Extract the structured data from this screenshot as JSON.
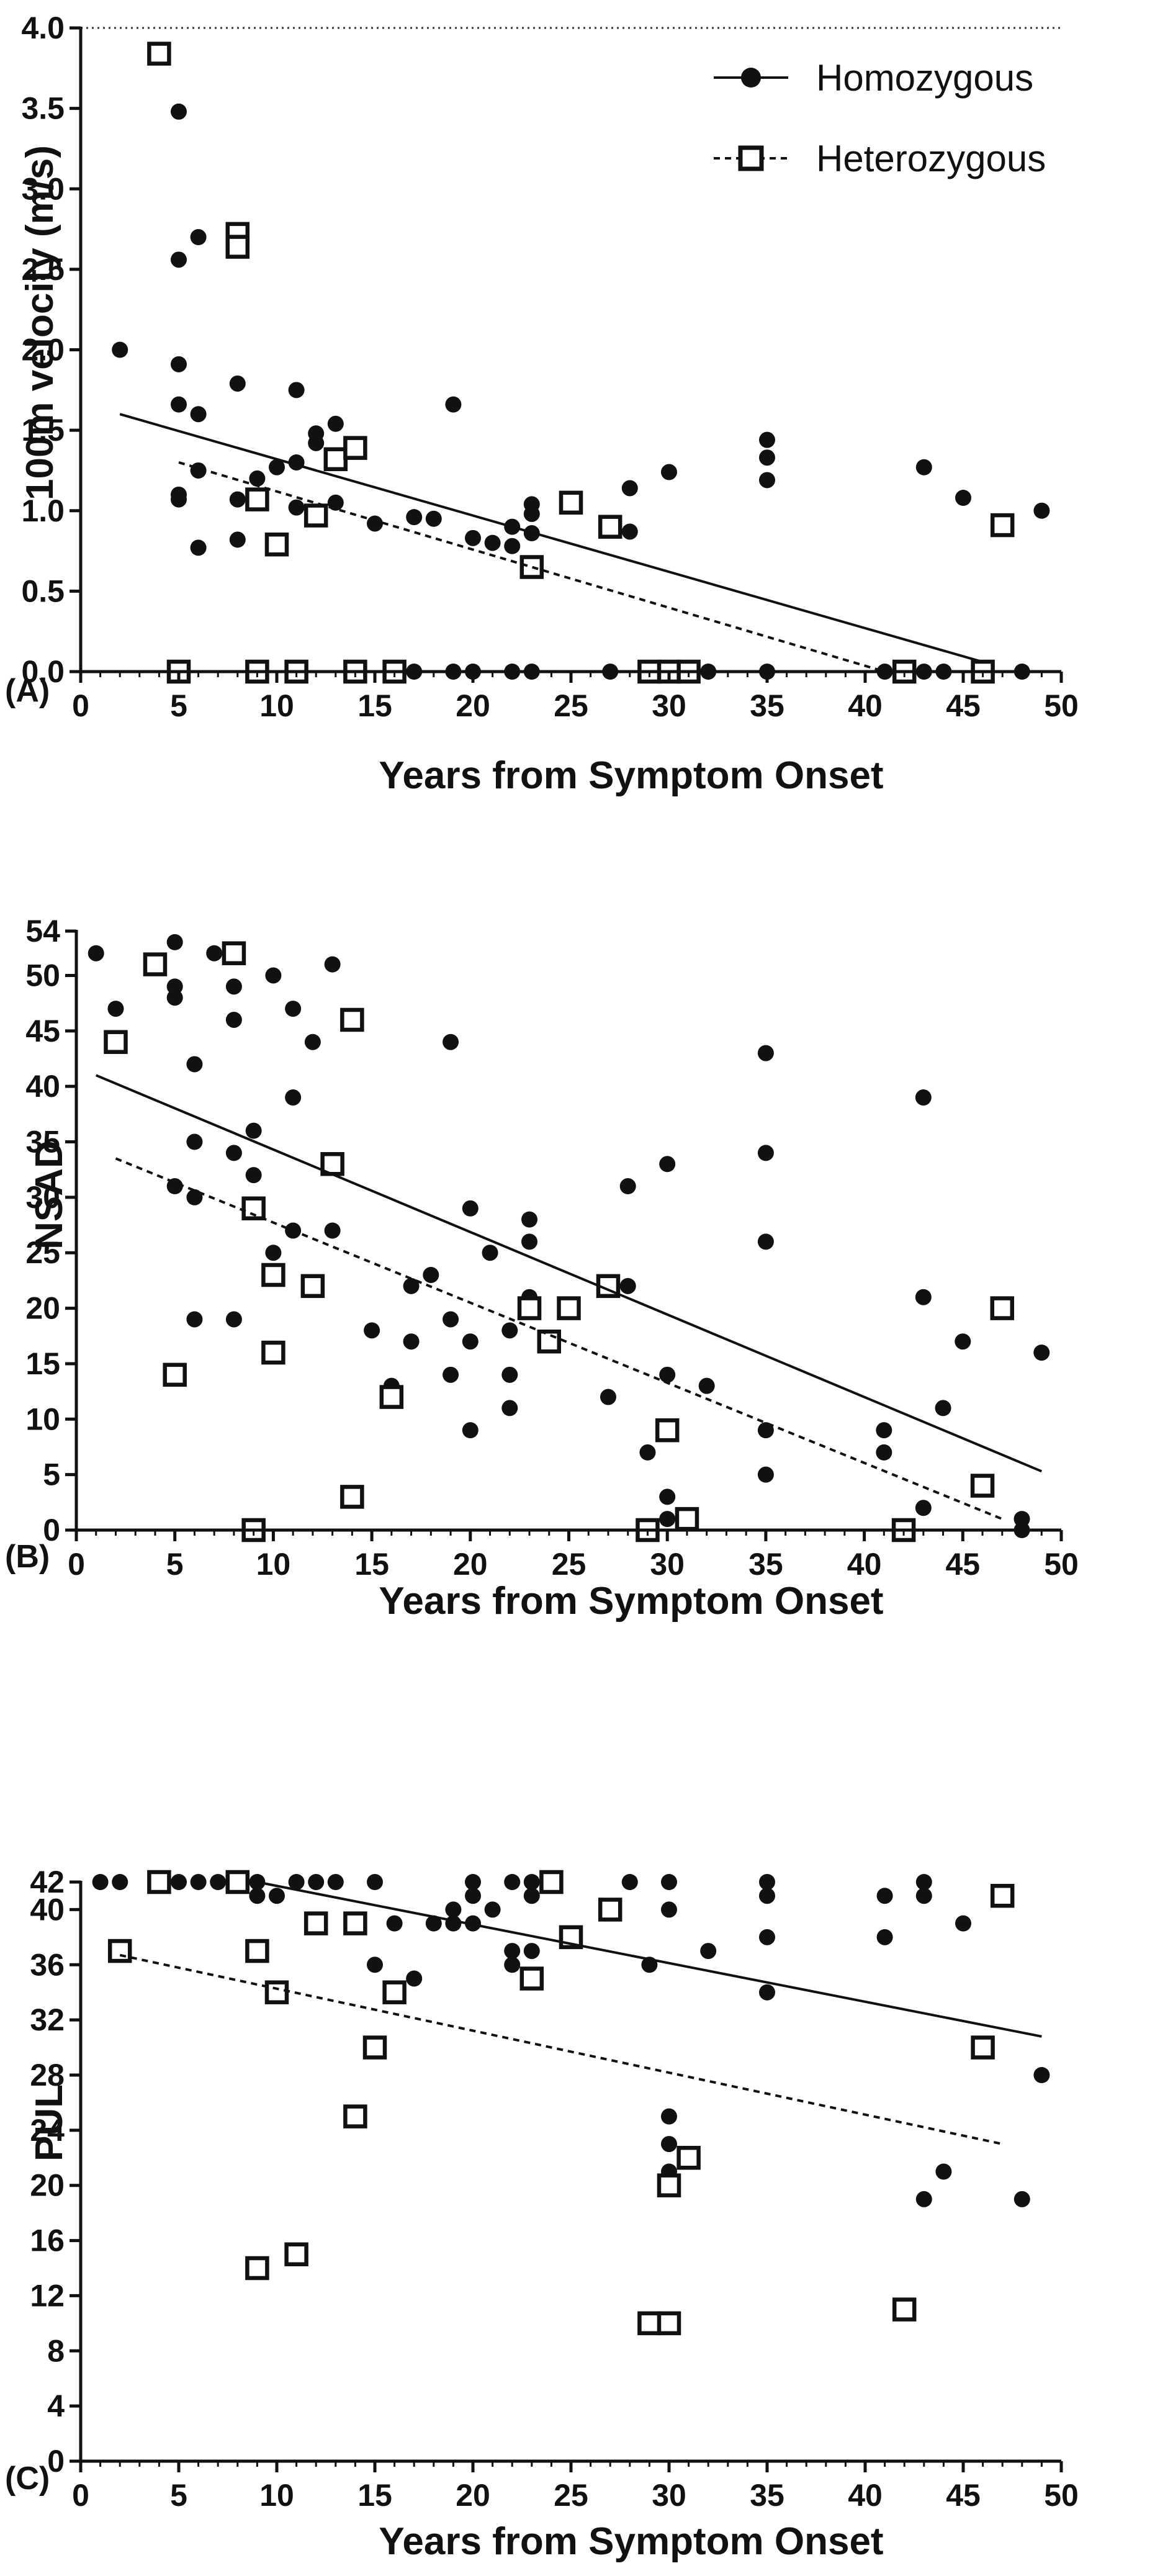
{
  "figure": {
    "legend": {
      "placement": "top-right",
      "entries": [
        "Homozygous",
        "Heterozygous"
      ]
    },
    "series_styles": {
      "Homozygous": {
        "marker": "filled-circle",
        "line": "solid"
      },
      "Heterozygous": {
        "marker": "open-square",
        "line": "dashed"
      }
    }
  },
  "chart_data": [
    {
      "panel_label": "(A)",
      "type": "scatter",
      "xlabel": "Years from Symptom Onset",
      "ylabel": "100m velocity (m/s)",
      "xlim": [
        0,
        50
      ],
      "ylim": [
        0,
        4.0
      ],
      "x_ticks": [
        "0",
        "5",
        "10",
        "15",
        "20",
        "25",
        "30",
        "35",
        "40",
        "45",
        "50"
      ],
      "y_ticks": [
        "0.0",
        "0.5",
        "1.0",
        "1.5",
        "2.0",
        "2.5",
        "3.0",
        "3.5",
        "4.0"
      ],
      "reference_line": {
        "y": 4.0,
        "style": "dotted"
      },
      "legend": [
        "Homozygous",
        "Heterozygous"
      ],
      "series": [
        {
          "name": "Homozygous",
          "points": [
            [
              2,
              2.0
            ],
            [
              5,
              3.48
            ],
            [
              5,
              2.56
            ],
            [
              5,
              1.91
            ],
            [
              5,
              1.66
            ],
            [
              5,
              1.1
            ],
            [
              5,
              1.07
            ],
            [
              6,
              2.7
            ],
            [
              6,
              1.6
            ],
            [
              6,
              1.25
            ],
            [
              6,
              0.77
            ],
            [
              8,
              1.79
            ],
            [
              8,
              1.07
            ],
            [
              8,
              0.82
            ],
            [
              9,
              1.2
            ],
            [
              10,
              1.27
            ],
            [
              11,
              1.75
            ],
            [
              11,
              1.3
            ],
            [
              11,
              1.02
            ],
            [
              12,
              1.48
            ],
            [
              12,
              1.42
            ],
            [
              13,
              1.54
            ],
            [
              13,
              1.05
            ],
            [
              15,
              0.92
            ],
            [
              17,
              0.96
            ],
            [
              18,
              0.95
            ],
            [
              19,
              1.66
            ],
            [
              20,
              0.83
            ],
            [
              21,
              0.8
            ],
            [
              22,
              0.9
            ],
            [
              22,
              0.78
            ],
            [
              23,
              1.04
            ],
            [
              23,
              0.98
            ],
            [
              23,
              0.86
            ],
            [
              28,
              1.14
            ],
            [
              28,
              0.87
            ],
            [
              30,
              1.24
            ],
            [
              35,
              1.44
            ],
            [
              35,
              1.33
            ],
            [
              35,
              1.19
            ],
            [
              43,
              1.27
            ],
            [
              45,
              1.08
            ],
            [
              49,
              1.0
            ],
            [
              16,
              0
            ],
            [
              17,
              0
            ],
            [
              19,
              0
            ],
            [
              20,
              0
            ],
            [
              22,
              0
            ],
            [
              23,
              0
            ],
            [
              27,
              0
            ],
            [
              29,
              0
            ],
            [
              30,
              0
            ],
            [
              32,
              0
            ],
            [
              35,
              0
            ],
            [
              41,
              0
            ],
            [
              43,
              0
            ],
            [
              44,
              0
            ],
            [
              48,
              0
            ]
          ]
        },
        {
          "name": "Heterozygous",
          "points": [
            [
              4,
              3.84
            ],
            [
              8,
              2.72
            ],
            [
              8,
              2.64
            ],
            [
              9,
              1.07
            ],
            [
              10,
              0.79
            ],
            [
              12,
              0.97
            ],
            [
              13,
              1.32
            ],
            [
              14,
              1.39
            ],
            [
              23,
              0.65
            ],
            [
              25,
              1.05
            ],
            [
              27,
              0.9
            ],
            [
              47,
              0.91
            ],
            [
              5,
              0
            ],
            [
              9,
              0
            ],
            [
              11,
              0
            ],
            [
              14,
              0
            ],
            [
              16,
              0
            ],
            [
              29,
              0
            ],
            [
              30,
              0
            ],
            [
              31,
              0
            ],
            [
              42,
              0
            ],
            [
              46,
              0
            ]
          ]
        }
      ],
      "trendlines": [
        {
          "name": "Homozygous",
          "style": "solid",
          "x": [
            2,
            46
          ],
          "y": [
            1.6,
            0.06
          ]
        },
        {
          "name": "Heterozygous",
          "style": "dashed",
          "x": [
            5,
            41
          ],
          "y": [
            1.3,
            0.0
          ]
        }
      ]
    },
    {
      "panel_label": "(B)",
      "type": "scatter",
      "xlabel": "Years from Symptom Onset",
      "ylabel": "NSAD",
      "xlim": [
        0,
        50
      ],
      "ylim": [
        0,
        54
      ],
      "x_ticks": [
        "0",
        "5",
        "10",
        "15",
        "20",
        "25",
        "30",
        "35",
        "40",
        "45",
        "50"
      ],
      "y_ticks": [
        "0",
        "5",
        "10",
        "15",
        "20",
        "25",
        "30",
        "35",
        "40",
        "45",
        "50",
        "54"
      ],
      "legend": [
        "Homozygous",
        "Heterozygous"
      ],
      "series": [
        {
          "name": "Homozygous",
          "points": [
            [
              1,
              52
            ],
            [
              2,
              47
            ],
            [
              5,
              53
            ],
            [
              5,
              49
            ],
            [
              5,
              48
            ],
            [
              5,
              31
            ],
            [
              6,
              42
            ],
            [
              6,
              35
            ],
            [
              6,
              30
            ],
            [
              6,
              19
            ],
            [
              7,
              52
            ],
            [
              8,
              49
            ],
            [
              8,
              46
            ],
            [
              8,
              34
            ],
            [
              8,
              19
            ],
            [
              9,
              36
            ],
            [
              9,
              32
            ],
            [
              10,
              50
            ],
            [
              10,
              25
            ],
            [
              11,
              47
            ],
            [
              11,
              39
            ],
            [
              11,
              27
            ],
            [
              12,
              44
            ],
            [
              13,
              51
            ],
            [
              13,
              27
            ],
            [
              15,
              18
            ],
            [
              16,
              13
            ],
            [
              17,
              22
            ],
            [
              17,
              17
            ],
            [
              18,
              23
            ],
            [
              19,
              44
            ],
            [
              19,
              19
            ],
            [
              19,
              14
            ],
            [
              20,
              29
            ],
            [
              20,
              17
            ],
            [
              20,
              9
            ],
            [
              21,
              25
            ],
            [
              22,
              18
            ],
            [
              22,
              14
            ],
            [
              22,
              11
            ],
            [
              23,
              28
            ],
            [
              23,
              26
            ],
            [
              23,
              21
            ],
            [
              23,
              20
            ],
            [
              27,
              12
            ],
            [
              28,
              31
            ],
            [
              28,
              22
            ],
            [
              29,
              7
            ],
            [
              30,
              33
            ],
            [
              30,
              14
            ],
            [
              30,
              3
            ],
            [
              30,
              1
            ],
            [
              32,
              13
            ],
            [
              35,
              43
            ],
            [
              35,
              34
            ],
            [
              35,
              26
            ],
            [
              35,
              9
            ],
            [
              35,
              5
            ],
            [
              41,
              9
            ],
            [
              41,
              7
            ],
            [
              43,
              39
            ],
            [
              43,
              21
            ],
            [
              43,
              2
            ],
            [
              44,
              11
            ],
            [
              45,
              17
            ],
            [
              48,
              1
            ],
            [
              48,
              0
            ],
            [
              49,
              16
            ]
          ]
        },
        {
          "name": "Heterozygous",
          "points": [
            [
              2,
              44
            ],
            [
              4,
              51
            ],
            [
              5,
              14
            ],
            [
              8,
              52
            ],
            [
              9,
              29
            ],
            [
              9,
              0
            ],
            [
              10,
              23
            ],
            [
              10,
              16
            ],
            [
              12,
              22
            ],
            [
              13,
              33
            ],
            [
              14,
              46
            ],
            [
              14,
              3
            ],
            [
              16,
              12
            ],
            [
              23,
              20
            ],
            [
              24,
              17
            ],
            [
              25,
              20
            ],
            [
              27,
              22
            ],
            [
              29,
              0
            ],
            [
              30,
              9
            ],
            [
              31,
              1
            ],
            [
              42,
              0
            ],
            [
              46,
              4
            ],
            [
              47,
              20
            ]
          ]
        }
      ],
      "trendlines": [
        {
          "name": "Homozygous",
          "style": "solid",
          "x": [
            1,
            49
          ],
          "y": [
            41,
            5.3
          ]
        },
        {
          "name": "Heterozygous",
          "style": "dashed",
          "x": [
            2,
            47
          ],
          "y": [
            33.5,
            1
          ]
        }
      ]
    },
    {
      "panel_label": "(C)",
      "type": "scatter",
      "xlabel": "Years from Symptom Onset",
      "ylabel": "PUL",
      "xlim": [
        0,
        50
      ],
      "ylim": [
        0,
        42
      ],
      "x_ticks": [
        "0",
        "5",
        "10",
        "15",
        "20",
        "25",
        "30",
        "35",
        "40",
        "45",
        "50"
      ],
      "y_ticks": [
        "0",
        "4",
        "8",
        "12",
        "16",
        "20",
        "24",
        "28",
        "32",
        "36",
        "40",
        "42"
      ],
      "legend": [
        "Homozygous",
        "Heterozygous"
      ],
      "series": [
        {
          "name": "Homozygous",
          "points": [
            [
              1,
              42
            ],
            [
              2,
              42
            ],
            [
              5,
              42
            ],
            [
              6,
              42
            ],
            [
              7,
              42
            ],
            [
              8,
              42
            ],
            [
              9,
              42
            ],
            [
              9,
              41
            ],
            [
              10,
              41
            ],
            [
              11,
              42
            ],
            [
              12,
              42
            ],
            [
              13,
              42
            ],
            [
              15,
              42
            ],
            [
              15,
              36
            ],
            [
              16,
              39
            ],
            [
              17,
              35
            ],
            [
              18,
              39
            ],
            [
              19,
              40
            ],
            [
              19,
              39
            ],
            [
              20,
              42
            ],
            [
              20,
              41
            ],
            [
              20,
              39
            ],
            [
              21,
              40
            ],
            [
              22,
              42
            ],
            [
              22,
              37
            ],
            [
              22,
              36
            ],
            [
              23,
              42
            ],
            [
              23,
              41
            ],
            [
              23,
              37
            ],
            [
              28,
              42
            ],
            [
              29,
              36
            ],
            [
              30,
              42
            ],
            [
              30,
              40
            ],
            [
              30,
              25
            ],
            [
              30,
              23
            ],
            [
              30,
              21
            ],
            [
              32,
              37
            ],
            [
              35,
              42
            ],
            [
              35,
              41
            ],
            [
              35,
              38
            ],
            [
              35,
              34
            ],
            [
              41,
              41
            ],
            [
              41,
              38
            ],
            [
              43,
              42
            ],
            [
              43,
              41
            ],
            [
              43,
              19
            ],
            [
              44,
              21
            ],
            [
              45,
              39
            ],
            [
              48,
              19
            ],
            [
              49,
              28
            ]
          ]
        },
        {
          "name": "Heterozygous",
          "points": [
            [
              2,
              37
            ],
            [
              4,
              42
            ],
            [
              8,
              42
            ],
            [
              9,
              37
            ],
            [
              9,
              14
            ],
            [
              10,
              34
            ],
            [
              11,
              15
            ],
            [
              12,
              39
            ],
            [
              14,
              39
            ],
            [
              14,
              25
            ],
            [
              15,
              30
            ],
            [
              16,
              34
            ],
            [
              23,
              35
            ],
            [
              24,
              42
            ],
            [
              25,
              38
            ],
            [
              27,
              40
            ],
            [
              29,
              10
            ],
            [
              30,
              10
            ],
            [
              30,
              20
            ],
            [
              31,
              22
            ],
            [
              42,
              11
            ],
            [
              46,
              30
            ],
            [
              47,
              41
            ]
          ]
        }
      ],
      "trendlines": [
        {
          "name": "Homozygous",
          "style": "solid",
          "x": [
            9,
            49
          ],
          "y": [
            42,
            30.8
          ]
        },
        {
          "name": "Heterozygous",
          "style": "dashed",
          "x": [
            2,
            47
          ],
          "y": [
            36.7,
            23
          ]
        }
      ]
    }
  ]
}
